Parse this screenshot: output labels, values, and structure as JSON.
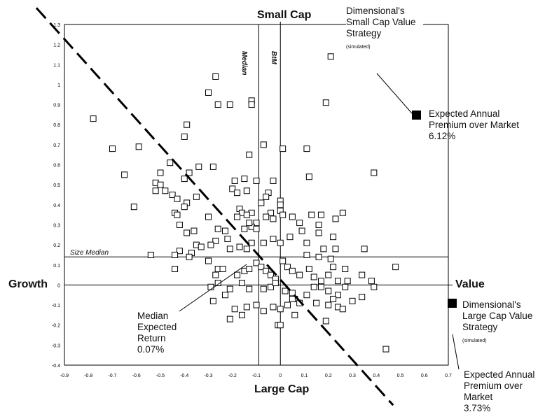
{
  "chart_data": {
    "type": "scatter",
    "xlim": [
      -0.9,
      0.7
    ],
    "ylim": [
      -0.4,
      1.3
    ],
    "x_ticks": [
      -0.9,
      -0.8,
      -0.7,
      -0.6,
      -0.5,
      -0.4,
      -0.3,
      -0.2,
      -0.1,
      0,
      0.1,
      0.2,
      0.3,
      0.4,
      0.5,
      0.6,
      0.7
    ],
    "x_tick_labels": [
      "-0.9",
      "-0.8",
      "-0.7",
      "-0.6",
      "-0.5",
      "-0.4",
      "-0.3",
      "-0.2",
      "-0.1",
      "0",
      "0.1",
      "0.2",
      "0.3",
      "0.4",
      "0.5",
      "0.6",
      "0.7"
    ],
    "y_ticks": [
      -0.4,
      -0.3,
      -0.2,
      -0.1,
      0,
      0.1,
      0.2,
      0.3,
      0.4,
      0.5,
      0.6,
      0.7,
      0.8,
      0.9,
      1,
      1.1,
      1.2,
      1.3
    ],
    "y_tick_labels": [
      "-0.4",
      "-0.3",
      "-0.2",
      "-0.1",
      "0",
      "0.1",
      "0.2",
      "0.3",
      "0.4",
      "0.5",
      "0.6",
      "0.7",
      "0.8",
      "0.9",
      "1",
      "1.1",
      "1.2",
      "1.3"
    ],
    "grid": false,
    "axis_labels": {
      "top": "Small Cap",
      "bottom": "Large Cap",
      "left": "Growth",
      "right": "Value"
    },
    "reference_lines": {
      "bm_median_x": -0.09,
      "bm_median_label": "BtM Median",
      "size_median_y": 0.14,
      "size_median_label": "Size Median",
      "trend_line": [
        [
          -0.9,
          1.25
        ],
        [
          0.47,
          -0.6
        ]
      ]
    },
    "highlight_points": [
      {
        "x": 0.57,
        "y": 0.85,
        "label": "Dimensional's Small Cap Value Strategy",
        "sublabel": "(simulated)",
        "premium_label": "Expected Annual Premium over Market",
        "premium_value": "6.12%"
      },
      {
        "x": 0.72,
        "y": -0.1,
        "label": "Dimensional's Large Cap Value Strategy",
        "sublabel": "(simulated)",
        "premium_label": "Expected Annual Premium over Market",
        "premium_value": "3.73%"
      }
    ],
    "annotation": {
      "label": "Median Expected Return",
      "value": "0.07%",
      "x": -0.02,
      "y": 0.12
    },
    "points": [
      [
        -0.27,
        1.04
      ],
      [
        -0.3,
        0.96
      ],
      [
        -0.26,
        0.9
      ],
      [
        -0.21,
        0.9
      ],
      [
        -0.12,
        0.92
      ],
      [
        -0.12,
        0.9
      ],
      [
        0.19,
        0.91
      ],
      [
        0.21,
        1.14
      ],
      [
        -0.78,
        0.83
      ],
      [
        -0.39,
        0.8
      ],
      [
        -0.4,
        0.74
      ],
      [
        -0.7,
        0.68
      ],
      [
        -0.59,
        0.69
      ],
      [
        -0.07,
        0.7
      ],
      [
        0.01,
        0.68
      ],
      [
        0.11,
        0.68
      ],
      [
        -0.13,
        0.65
      ],
      [
        -0.65,
        0.55
      ],
      [
        -0.38,
        0.56
      ],
      [
        -0.34,
        0.59
      ],
      [
        -0.28,
        0.59
      ],
      [
        -0.46,
        0.61
      ],
      [
        -0.5,
        0.56
      ],
      [
        -0.4,
        0.53
      ],
      [
        -0.52,
        0.51
      ],
      [
        -0.52,
        0.47
      ],
      [
        -0.5,
        0.5
      ],
      [
        -0.48,
        0.47
      ],
      [
        -0.45,
        0.45
      ],
      [
        -0.43,
        0.43
      ],
      [
        -0.39,
        0.41
      ],
      [
        -0.35,
        0.44
      ],
      [
        -0.4,
        0.39
      ],
      [
        -0.61,
        0.39
      ],
      [
        -0.44,
        0.36
      ],
      [
        -0.43,
        0.35
      ],
      [
        -0.2,
        0.48
      ],
      [
        -0.18,
        0.46
      ],
      [
        -0.19,
        0.52
      ],
      [
        -0.15,
        0.53
      ],
      [
        -0.14,
        0.47
      ],
      [
        -0.1,
        0.52
      ],
      [
        -0.03,
        0.52
      ],
      [
        0.0,
        0.42
      ],
      [
        0.0,
        0.4
      ],
      [
        -0.05,
        0.46
      ],
      [
        -0.06,
        0.44
      ],
      [
        -0.08,
        0.41
      ],
      [
        0.12,
        0.54
      ],
      [
        0.39,
        0.56
      ],
      [
        -0.17,
        0.38
      ],
      [
        -0.16,
        0.36
      ],
      [
        -0.12,
        0.36
      ],
      [
        -0.18,
        0.34
      ],
      [
        -0.14,
        0.35
      ],
      [
        -0.1,
        0.31
      ],
      [
        -0.12,
        0.29
      ],
      [
        -0.13,
        0.31
      ],
      [
        -0.15,
        0.28
      ],
      [
        -0.1,
        0.28
      ],
      [
        -0.04,
        0.36
      ],
      [
        -0.06,
        0.34
      ],
      [
        -0.03,
        0.33
      ],
      [
        0.0,
        0.37
      ],
      [
        0.01,
        0.35
      ],
      [
        0.05,
        0.34
      ],
      [
        0.13,
        0.35
      ],
      [
        0.17,
        0.35
      ],
      [
        0.26,
        0.36
      ],
      [
        0.23,
        0.33
      ],
      [
        0.08,
        0.31
      ],
      [
        0.16,
        0.3
      ],
      [
        -0.3,
        0.34
      ],
      [
        -0.42,
        0.3
      ],
      [
        -0.36,
        0.27
      ],
      [
        -0.39,
        0.26
      ],
      [
        -0.26,
        0.28
      ],
      [
        -0.23,
        0.27
      ],
      [
        -0.22,
        0.23
      ],
      [
        -0.27,
        0.22
      ],
      [
        -0.29,
        0.2
      ],
      [
        -0.35,
        0.2
      ],
      [
        -0.33,
        0.19
      ],
      [
        -0.37,
        0.16
      ],
      [
        -0.38,
        0.14
      ],
      [
        -0.42,
        0.17
      ],
      [
        -0.44,
        0.15
      ],
      [
        -0.54,
        0.15
      ],
      [
        -0.21,
        0.18
      ],
      [
        -0.17,
        0.19
      ],
      [
        -0.14,
        0.18
      ],
      [
        -0.12,
        0.21
      ],
      [
        -0.07,
        0.21
      ],
      [
        -0.03,
        0.23
      ],
      [
        0.0,
        0.21
      ],
      [
        0.04,
        0.24
      ],
      [
        0.09,
        0.27
      ],
      [
        0.16,
        0.26
      ],
      [
        0.22,
        0.24
      ],
      [
        0.11,
        0.21
      ],
      [
        0.18,
        0.18
      ],
      [
        0.23,
        0.18
      ],
      [
        0.11,
        0.15
      ],
      [
        0.16,
        0.14
      ],
      [
        0.21,
        0.13
      ],
      [
        0.22,
        0.09
      ],
      [
        0.27,
        0.08
      ],
      [
        0.35,
        0.18
      ],
      [
        0.48,
        0.09
      ],
      [
        -0.44,
        0.08
      ],
      [
        -0.3,
        0.12
      ],
      [
        -0.26,
        0.08
      ],
      [
        -0.24,
        0.08
      ],
      [
        -0.18,
        0.05
      ],
      [
        -0.15,
        0.07
      ],
      [
        -0.13,
        0.08
      ],
      [
        -0.1,
        0.11
      ],
      [
        -0.08,
        0.09
      ],
      [
        -0.06,
        0.07
      ],
      [
        -0.04,
        0.05
      ],
      [
        -0.02,
        0.03
      ],
      [
        0.01,
        0.12
      ],
      [
        0.03,
        0.09
      ],
      [
        0.05,
        0.07
      ],
      [
        0.08,
        0.05
      ],
      [
        0.12,
        0.08
      ],
      [
        0.14,
        0.04
      ],
      [
        0.17,
        0.02
      ],
      [
        0.2,
        0.05
      ],
      [
        0.24,
        0.02
      ],
      [
        0.28,
        0.02
      ],
      [
        0.34,
        0.05
      ],
      [
        0.38,
        0.02
      ],
      [
        0.39,
        -0.01
      ],
      [
        -0.27,
        0.05
      ],
      [
        -0.26,
        0.01
      ],
      [
        -0.29,
        -0.01
      ],
      [
        -0.21,
        -0.02
      ],
      [
        -0.16,
        0.01
      ],
      [
        -0.13,
        -0.02
      ],
      [
        -0.07,
        -0.02
      ],
      [
        -0.04,
        -0.01
      ],
      [
        -0.02,
        0.01
      ],
      [
        0.02,
        -0.03
      ],
      [
        0.05,
        -0.04
      ],
      [
        0.06,
        -0.07
      ],
      [
        0.08,
        -0.09
      ],
      [
        0.11,
        -0.05
      ],
      [
        0.14,
        -0.01
      ],
      [
        0.17,
        -0.01
      ],
      [
        0.2,
        -0.03
      ],
      [
        0.24,
        -0.05
      ],
      [
        0.27,
        -0.01
      ],
      [
        0.3,
        -0.08
      ],
      [
        0.34,
        -0.06
      ],
      [
        0.22,
        -0.07
      ],
      [
        0.2,
        -0.1
      ],
      [
        0.15,
        -0.09
      ],
      [
        -0.28,
        -0.08
      ],
      [
        -0.23,
        -0.05
      ],
      [
        -0.19,
        -0.12
      ],
      [
        -0.14,
        -0.11
      ],
      [
        -0.1,
        -0.1
      ],
      [
        -0.07,
        -0.13
      ],
      [
        -0.03,
        -0.11
      ],
      [
        0.0,
        -0.12
      ],
      [
        0.03,
        -0.1
      ],
      [
        0.05,
        -0.07
      ],
      [
        -0.21,
        -0.17
      ],
      [
        -0.16,
        -0.15
      ],
      [
        -0.01,
        -0.2
      ],
      [
        0.0,
        -0.2
      ],
      [
        0.06,
        -0.15
      ],
      [
        0.19,
        -0.18
      ],
      [
        0.24,
        -0.11
      ],
      [
        0.26,
        -0.12
      ],
      [
        0.44,
        -0.32
      ]
    ]
  }
}
